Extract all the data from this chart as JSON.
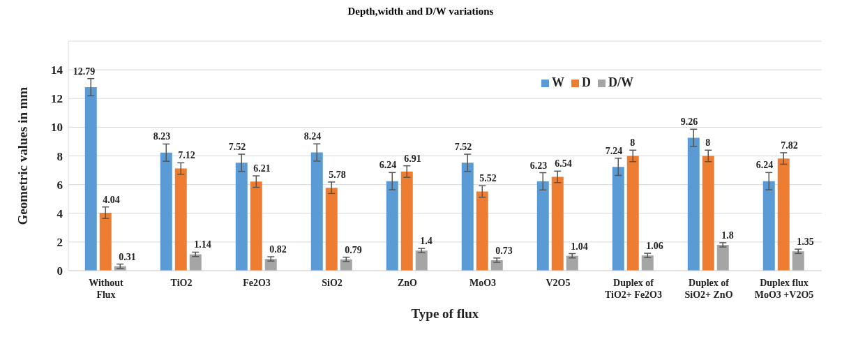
{
  "chart_data": {
    "type": "bar",
    "title": "Depth,width and D/W variations",
    "xlabel": "Type of flux",
    "ylabel": "Geometric values in mm",
    "categories": [
      "Without Flux",
      "TiO2",
      "Fe2O3",
      "SiO2",
      "ZnO",
      "MoO3",
      "V2O5",
      "Duplex of TiO2+ Fe2O3",
      "Duplex of SiO2+ ZnO",
      "Duplex flux MoO3 +V2O5"
    ],
    "series": [
      {
        "name": "W",
        "color": "#5b9bd5",
        "values": [
          12.79,
          8.23,
          7.52,
          8.24,
          6.24,
          7.52,
          6.23,
          7.24,
          9.26,
          6.24
        ],
        "errors": [
          0.6,
          0.6,
          0.6,
          0.6,
          0.6,
          0.6,
          0.6,
          0.6,
          0.6,
          0.6
        ]
      },
      {
        "name": "D",
        "color": "#ed7d31",
        "values": [
          4.04,
          7.12,
          6.21,
          5.78,
          6.91,
          5.52,
          6.54,
          8,
          8,
          7.82
        ],
        "errors": [
          0.4,
          0.4,
          0.4,
          0.4,
          0.4,
          0.4,
          0.4,
          0.4,
          0.4,
          0.4
        ]
      },
      {
        "name": "D/W",
        "color": "#a5a5a5",
        "values": [
          0.31,
          1.14,
          0.82,
          0.79,
          1.4,
          0.73,
          1.04,
          1.06,
          1.8,
          1.35
        ],
        "errors": [
          0.15,
          0.15,
          0.15,
          0.15,
          0.15,
          0.15,
          0.15,
          0.15,
          0.15,
          0.15
        ]
      }
    ],
    "ylim": [
      0,
      16
    ],
    "yticks": [
      0,
      2,
      4,
      6,
      8,
      10,
      12,
      14
    ],
    "grid": "y",
    "legend": "top right",
    "data_labels": true
  }
}
